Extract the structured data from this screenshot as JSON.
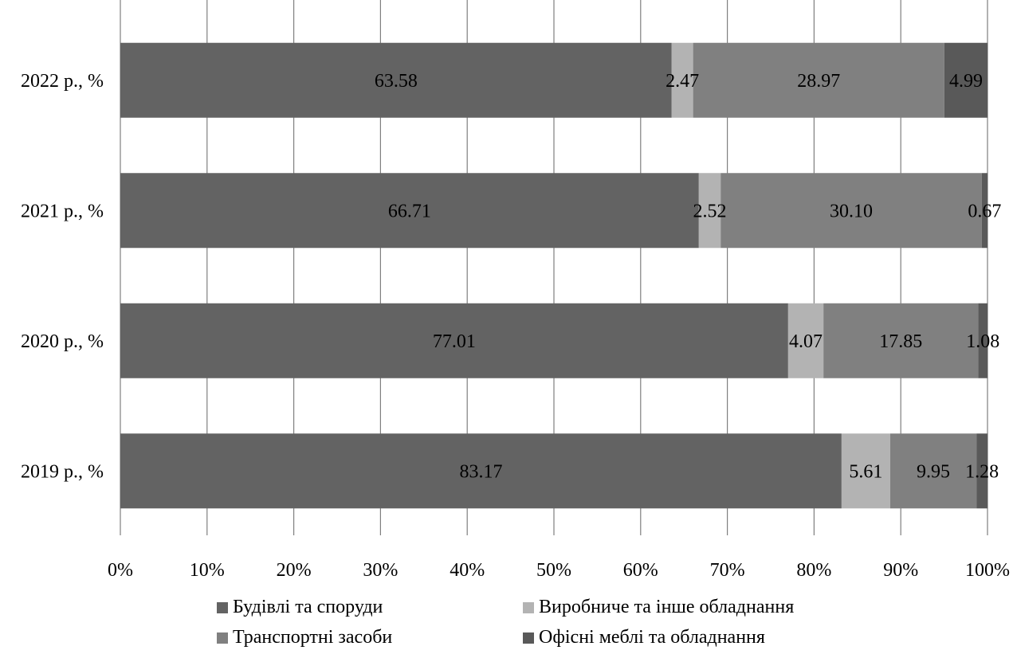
{
  "chart_data": {
    "type": "bar",
    "orientation": "horizontal",
    "stacking": "percent",
    "title": "",
    "xlabel": "",
    "ylabel": "",
    "categories": [
      "2019 р., %",
      "2020 р., %",
      "2021 р., %",
      "2022 р., %"
    ],
    "xlim": [
      0,
      100
    ],
    "x_ticks": [
      "0%",
      "10%",
      "20%",
      "30%",
      "40%",
      "50%",
      "60%",
      "70%",
      "80%",
      "90%",
      "100%"
    ],
    "grid": true,
    "legend_position": "bottom",
    "series": [
      {
        "name": "Будівлі та споруди",
        "color": "#636363",
        "values": [
          83.17,
          77.01,
          66.71,
          63.58
        ]
      },
      {
        "name": "Виробниче та інше обладнання",
        "color": "#b3b3b3",
        "values": [
          5.61,
          4.07,
          2.52,
          2.47
        ]
      },
      {
        "name": "Транспортні засоби",
        "color": "#808080",
        "values": [
          9.95,
          17.85,
          30.1,
          28.97
        ]
      },
      {
        "name": "Офісні меблі та обладнання",
        "color": "#595959",
        "values": [
          1.28,
          1.08,
          0.67,
          4.99
        ]
      }
    ],
    "data_labels": [
      [
        "83.17",
        "77.01",
        "66.71",
        "63.58"
      ],
      [
        "5.61",
        "4.07",
        "2.52",
        "2.47"
      ],
      [
        "9.95",
        "17.85",
        "30.10",
        "28.97"
      ],
      [
        "1.28",
        "1.08",
        "0.67",
        "4.99"
      ]
    ]
  }
}
